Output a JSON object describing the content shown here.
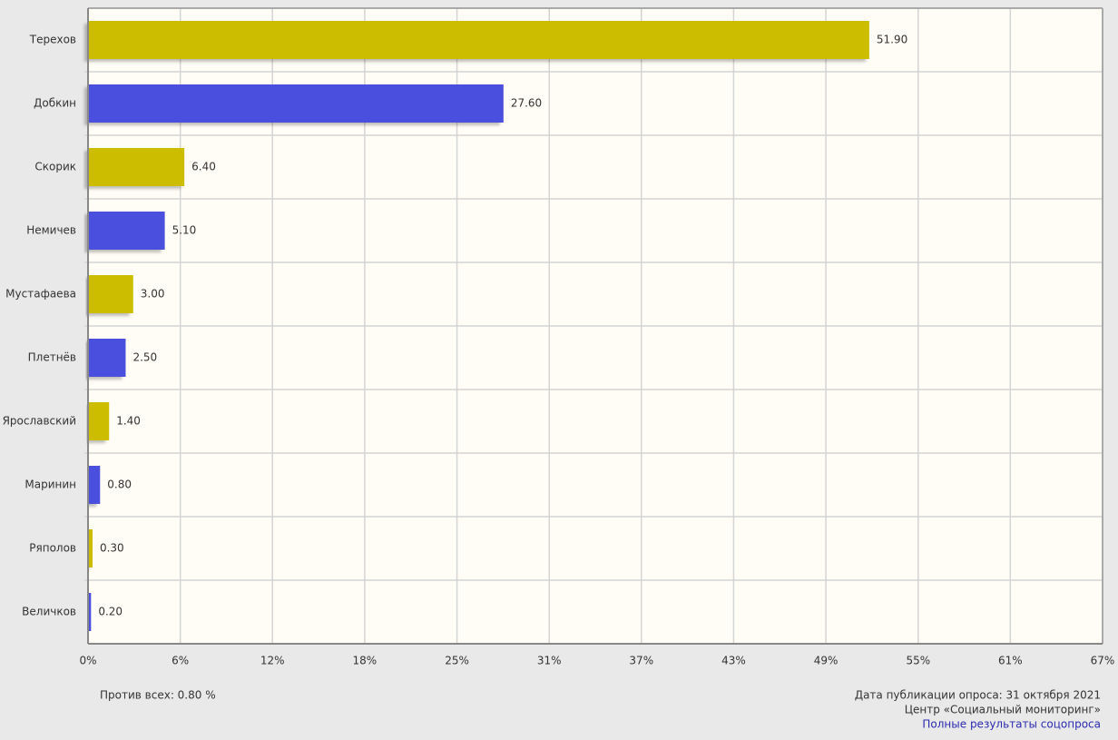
{
  "chart_data": {
    "type": "bar",
    "categories": [
      "Терехов",
      "Добкин",
      "Скорик",
      "Немичев",
      "Мустафаева",
      "Плетнёв",
      "Ярославский",
      "Маринин",
      "Ряполов",
      "Величков"
    ],
    "values": [
      51.9,
      27.6,
      6.4,
      5.1,
      3.0,
      2.5,
      1.4,
      0.8,
      0.3,
      0.2
    ],
    "value_labels": [
      "51.90",
      "27.60",
      "6.40",
      "5.10",
      "3.00",
      "2.50",
      "1.40",
      "0.80",
      "0.30",
      "0.20"
    ],
    "colors": [
      "#cdbd00",
      "#4b4fde",
      "#cdbd00",
      "#4b4fde",
      "#cdbd00",
      "#4b4fde",
      "#cdbd00",
      "#4b4fde",
      "#cdbd00",
      "#4b4fde"
    ],
    "xlim": [
      0,
      67.4
    ],
    "xticks": [
      {
        "value": 0,
        "label": "0%"
      },
      {
        "value": 6.13,
        "label": "6%"
      },
      {
        "value": 12.25,
        "label": "12%"
      },
      {
        "value": 18.38,
        "label": "18%"
      },
      {
        "value": 24.51,
        "label": "25%"
      },
      {
        "value": 30.64,
        "label": "31%"
      },
      {
        "value": 36.76,
        "label": "37%"
      },
      {
        "value": 42.89,
        "label": "43%"
      },
      {
        "value": 49.02,
        "label": "49%"
      },
      {
        "value": 55.15,
        "label": "55%"
      },
      {
        "value": 61.27,
        "label": "61%"
      },
      {
        "value": 67.4,
        "label": "67%"
      }
    ],
    "grid": true
  },
  "footer": {
    "against_all": "Против всех: 0.80 %",
    "date": "Дата публикации опроса: 31 октября 2021",
    "source": "Центр «Социальный мониторинг»",
    "link": "Полные результаты соцопроса"
  }
}
